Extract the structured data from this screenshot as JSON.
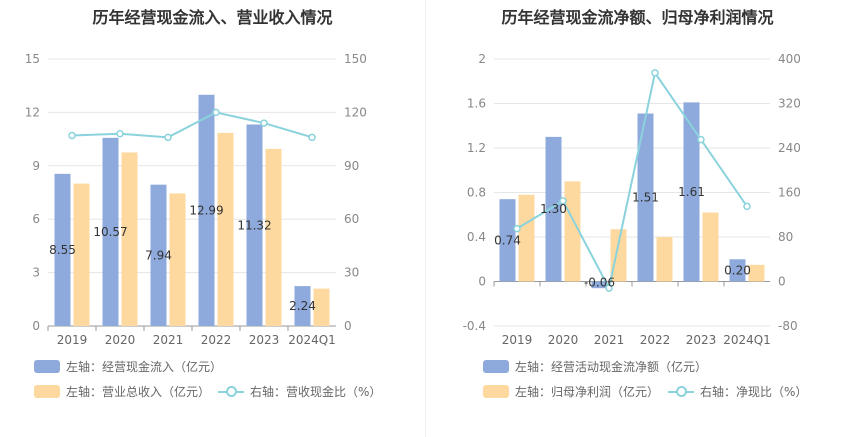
{
  "left_title": "历年经营现金流入、营业收入情况",
  "right_title": "历年经营现金流净额、归母净利润情况",
  "colors": {
    "blue": "#8eaadc",
    "yellow": "#fdd9a0",
    "line": "#8bd3dc"
  },
  "legend_left": {
    "item1": "左轴：经营现金流入（亿元）",
    "item2": "左轴：营业总收入（亿元）",
    "item3": "右轴：营收现金比（%）"
  },
  "legend_right": {
    "item1": "左轴：经营活动现金流净额（亿元）",
    "item2": "左轴：归母净利润（亿元）",
    "item3": "右轴：净现比（%）"
  },
  "chart_data": [
    {
      "type": "bar",
      "title": "历年经营现金流入、营业收入情况",
      "categories": [
        "2019",
        "2020",
        "2021",
        "2022",
        "2023",
        "2024Q1"
      ],
      "ylim_left": [
        0,
        15
      ],
      "left_ticks": [
        0,
        3,
        6,
        9,
        12,
        15
      ],
      "ylim_right": [
        0,
        150
      ],
      "right_ticks": [
        0,
        30,
        60,
        90,
        120,
        150
      ],
      "series": [
        {
          "name": "左轴：经营现金流入（亿元）",
          "axis": "left",
          "kind": "bar",
          "values": [
            8.55,
            10.57,
            7.94,
            12.99,
            11.32,
            2.24
          ],
          "labels": [
            "8.55",
            "10.57",
            "7.94",
            "12.99",
            "11.32",
            "2.24"
          ]
        },
        {
          "name": "左轴：营业总收入（亿元）",
          "axis": "left",
          "kind": "bar",
          "values": [
            8.0,
            9.75,
            7.45,
            10.85,
            9.95,
            2.1
          ]
        },
        {
          "name": "右轴：营收现金比（%）",
          "axis": "right",
          "kind": "line",
          "values": [
            107,
            108,
            106,
            120,
            114,
            106
          ]
        }
      ],
      "grid": true,
      "legend_position": "bottom"
    },
    {
      "type": "bar",
      "title": "历年经营现金流净额、归母净利润情况",
      "categories": [
        "2019",
        "2020",
        "2021",
        "2022",
        "2023",
        "2024Q1"
      ],
      "ylim_left": [
        -0.4,
        2
      ],
      "left_ticks": [
        "-0.4",
        "0",
        "0.4",
        "0.8",
        "1.2",
        "1.6",
        "2"
      ],
      "ylim_right": [
        -80,
        400
      ],
      "right_ticks": [
        -80,
        0,
        80,
        160,
        240,
        320,
        400
      ],
      "series": [
        {
          "name": "左轴：经营活动现金流净额（亿元）",
          "axis": "left",
          "kind": "bar",
          "values": [
            0.74,
            1.3,
            -0.06,
            1.51,
            1.61,
            0.2
          ],
          "labels": [
            "0.74",
            "1.30",
            "-0.06",
            "1.51",
            "1.61",
            "0.20"
          ]
        },
        {
          "name": "左轴：归母净利润（亿元）",
          "axis": "left",
          "kind": "bar",
          "values": [
            0.78,
            0.9,
            0.47,
            0.4,
            0.62,
            0.15
          ]
        },
        {
          "name": "右轴：净现比（%）",
          "axis": "right",
          "kind": "line",
          "values": [
            95,
            145,
            -12,
            375,
            255,
            135
          ]
        }
      ],
      "grid": true,
      "legend_position": "bottom"
    }
  ]
}
